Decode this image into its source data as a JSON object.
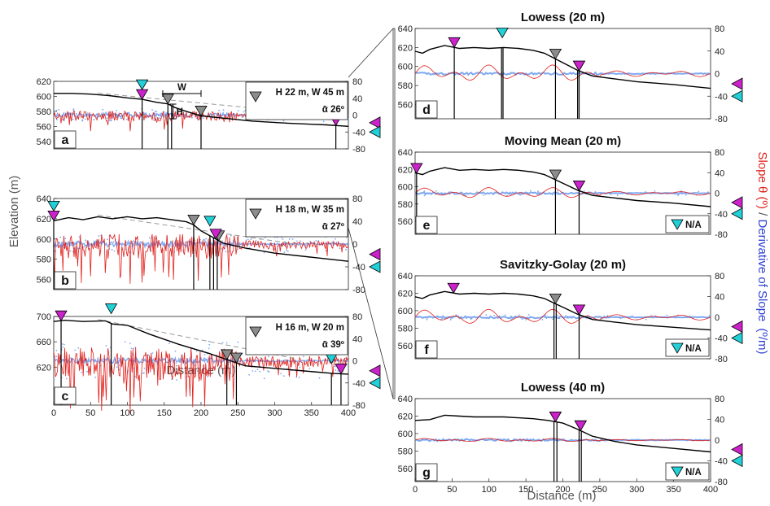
{
  "figure": {
    "y_left_label": "Elevation (m)",
    "x_label_left": "Distance (m)",
    "x_label_right": "Distance (m)",
    "y_right_label_red": "Slope θ (º)",
    "y_right_label_sep": " / ",
    "y_right_label_blue": "Derivative of Slope",
    "y_right_label_unit": "(º/m)",
    "colors": {
      "elevation": "#000000",
      "slope": "#e0201b",
      "derivative": "#7fa8f0",
      "marker_magenta": "#cc22cc",
      "marker_cyan": "#22d0d8",
      "marker_gray": "#8c8c8c"
    }
  },
  "chart_data": [
    {
      "id": "a",
      "type": "line",
      "panel_label": "a",
      "title": "",
      "xlim": [
        0,
        400
      ],
      "ylim_left": [
        530,
        620
      ],
      "ylim_right": [
        -80,
        80
      ],
      "yticks_left": [
        540,
        560,
        580,
        600,
        620
      ],
      "yticks_right": [
        -80,
        -40,
        0,
        40,
        80
      ],
      "xticks": [],
      "legend": {
        "text": "H 22 m, W 45 m",
        "text2": "ᾱ 26º",
        "placement": "top-right"
      },
      "annotations": {
        "W": "W",
        "H": "H"
      },
      "elevation": {
        "x": [
          0,
          25,
          50,
          75,
          100,
          120,
          140,
          155,
          165,
          180,
          200,
          230,
          270,
          320,
          370,
          400
        ],
        "y": [
          604,
          604,
          603,
          601,
          598,
          596,
          592,
          590,
          585,
          580,
          574,
          571,
          567,
          564,
          562,
          560
        ]
      },
      "markers": {
        "magenta": [
          120,
          383
        ],
        "cyan": [
          120,
          383
        ],
        "gray": [
          155,
          200
        ]
      },
      "vlines": [
        120,
        155,
        160,
        200,
        383
      ]
    },
    {
      "id": "b",
      "type": "line",
      "panel_label": "b",
      "title": "",
      "xlim": [
        0,
        400
      ],
      "ylim_left": [
        550,
        640
      ],
      "ylim_right": [
        -80,
        80
      ],
      "yticks_left": [
        560,
        580,
        600,
        620,
        640
      ],
      "yticks_right": [
        -80,
        -40,
        0,
        40,
        80
      ],
      "xticks": [],
      "legend": {
        "text": "H 18 m, W 35 m",
        "text2": "ᾱ 27º",
        "placement": "top-right"
      },
      "elevation": {
        "x": [
          0,
          20,
          40,
          60,
          80,
          100,
          120,
          140,
          160,
          180,
          190,
          200,
          215,
          230,
          260,
          300,
          350,
          400
        ],
        "y": [
          618,
          621,
          619,
          622,
          620,
          622,
          620,
          621,
          619,
          617,
          614,
          608,
          602,
          596,
          591,
          586,
          582,
          578
        ]
      },
      "markers": {
        "magenta": [
          0,
          220
        ],
        "cyan": [
          0,
          212
        ],
        "gray": [
          190,
          224
        ]
      },
      "vlines": [
        0,
        190,
        212,
        217,
        222
      ]
    },
    {
      "id": "c",
      "type": "line",
      "panel_label": "c",
      "title": "",
      "xlim": [
        0,
        400
      ],
      "ylim_left": [
        560,
        700
      ],
      "ylim_right": [
        -80,
        80
      ],
      "yticks_left": [
        620,
        660,
        700
      ],
      "yticks_right": [
        -80,
        -40,
        0,
        40,
        80
      ],
      "xticks": [
        0,
        50,
        100,
        150,
        200,
        250,
        300,
        350,
        400
      ],
      "legend": {
        "text": "H 16 m, W 20 m",
        "text2": "ᾱ 39º",
        "placement": "top-right"
      },
      "elevation": {
        "x": [
          0,
          15,
          40,
          70,
          80,
          100,
          130,
          170,
          210,
          240,
          260,
          300,
          340,
          380,
          400
        ],
        "y": [
          692,
          694,
          692,
          693,
          688,
          686,
          672,
          656,
          642,
          630,
          622,
          618,
          614,
          610,
          609
        ]
      },
      "markers": {
        "magenta": [
          10,
          390
        ],
        "cyan": [
          78,
          377
        ],
        "gray": [
          235,
          248
        ]
      },
      "vlines": [
        10,
        78,
        235,
        248,
        377,
        390
      ]
    },
    {
      "id": "d",
      "type": "line",
      "panel_label": "d",
      "title": "Lowess (20 m)",
      "xlim": [
        0,
        400
      ],
      "ylim_left": [
        545,
        640
      ],
      "ylim_right": [
        -80,
        80
      ],
      "yticks_left": [
        560,
        580,
        600,
        620,
        640
      ],
      "yticks_right": [
        -80,
        -40,
        0,
        40,
        80
      ],
      "xticks": [],
      "elevation": {
        "x": [
          0,
          10,
          20,
          40,
          60,
          80,
          100,
          120,
          140,
          160,
          175,
          190,
          205,
          220,
          240,
          270,
          300,
          350,
          400
        ],
        "y": [
          616,
          614,
          618,
          622,
          619,
          620,
          619,
          620,
          619,
          617,
          614,
          608,
          602,
          596,
          590,
          587,
          584,
          581,
          577
        ]
      },
      "markers": {
        "magenta": [
          53,
          222
        ],
        "cyan": [
          118
        ],
        "gray": [
          190,
          222
        ]
      },
      "vlines": [
        53,
        117,
        119,
        190,
        220,
        222
      ]
    },
    {
      "id": "e",
      "type": "line",
      "panel_label": "e",
      "title": "Moving Mean (20 m)",
      "xlim": [
        0,
        400
      ],
      "ylim_left": [
        545,
        640
      ],
      "ylim_right": [
        -80,
        80
      ],
      "yticks_left": [
        560,
        580,
        600,
        620,
        640
      ],
      "yticks_right": [
        -80,
        -40,
        0,
        40,
        80
      ],
      "xticks": [],
      "legend": {
        "text": "N/A",
        "placement": "bottom-right"
      },
      "elevation": {
        "x": [
          0,
          10,
          20,
          40,
          60,
          80,
          100,
          120,
          140,
          160,
          175,
          190,
          205,
          220,
          240,
          270,
          300,
          350,
          400
        ],
        "y": [
          616,
          614,
          618,
          622,
          619,
          620,
          619,
          620,
          619,
          617,
          614,
          608,
          602,
          596,
          590,
          587,
          584,
          581,
          577
        ]
      },
      "markers": {
        "magenta": [
          2,
          222
        ],
        "cyan": [],
        "gray": [
          190,
          222
        ]
      },
      "vlines": [
        2,
        190,
        222
      ]
    },
    {
      "id": "f",
      "type": "line",
      "panel_label": "f",
      "title": "Savitzky-Golay (20 m)",
      "xlim": [
        0,
        400
      ],
      "ylim_left": [
        545,
        640
      ],
      "ylim_right": [
        -80,
        80
      ],
      "yticks_left": [
        560,
        580,
        600,
        620,
        640
      ],
      "yticks_right": [
        -80,
        -40,
        0,
        40,
        80
      ],
      "xticks": [],
      "legend": {
        "text": "N/A",
        "placement": "bottom-right"
      },
      "elevation": {
        "x": [
          0,
          10,
          20,
          40,
          60,
          80,
          100,
          120,
          140,
          160,
          175,
          190,
          205,
          220,
          240,
          270,
          300,
          350,
          400
        ],
        "y": [
          616,
          614,
          618,
          622,
          619,
          620,
          619,
          620,
          619,
          617,
          614,
          608,
          602,
          596,
          590,
          587,
          584,
          581,
          578
        ]
      },
      "markers": {
        "magenta": [
          52,
          222
        ],
        "cyan": [],
        "gray": [
          190,
          222
        ]
      },
      "vlines": [
        188,
        191,
        222
      ]
    },
    {
      "id": "g",
      "type": "line",
      "panel_label": "g",
      "title": "Lowess (40 m)",
      "xlim": [
        0,
        400
      ],
      "ylim_left": [
        545,
        640
      ],
      "ylim_right": [
        -80,
        80
      ],
      "yticks_left": [
        560,
        580,
        600,
        620,
        640
      ],
      "yticks_right": [
        -80,
        -40,
        0,
        40,
        80
      ],
      "xticks": [
        0,
        50,
        100,
        150,
        200,
        250,
        300,
        350,
        400
      ],
      "legend": {
        "text": "N/A",
        "placement": "bottom-right"
      },
      "elevation": {
        "x": [
          0,
          20,
          40,
          60,
          80,
          100,
          120,
          140,
          160,
          180,
          200,
          220,
          240,
          270,
          300,
          350,
          400
        ],
        "y": [
          615,
          616,
          621,
          620,
          619,
          619,
          619,
          618,
          617,
          615,
          612,
          605,
          597,
          591,
          587,
          583,
          579
        ]
      },
      "markers": {
        "magenta": [
          190,
          224
        ],
        "cyan": [],
        "gray": [
          190,
          224
        ]
      },
      "vlines": [
        188,
        192,
        222,
        225
      ]
    }
  ]
}
